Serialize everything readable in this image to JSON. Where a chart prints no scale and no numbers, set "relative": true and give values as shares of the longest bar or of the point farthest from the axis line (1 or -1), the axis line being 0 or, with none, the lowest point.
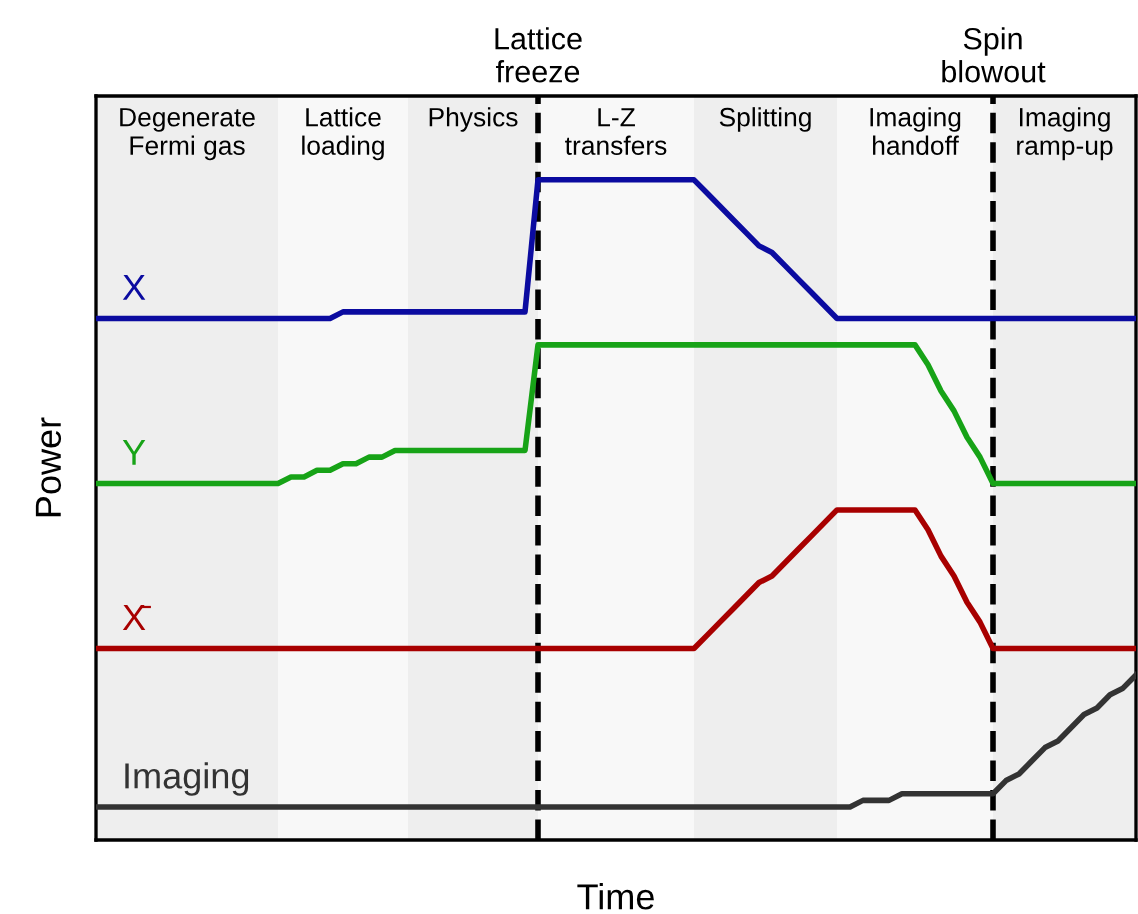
{
  "chart_data": {
    "type": "line",
    "xlabel": "Time",
    "ylabel": "Power",
    "relative": true,
    "line_style": "solid",
    "categories": [
      null,
      null,
      null,
      null,
      null,
      null,
      null,
      null,
      null,
      null,
      null,
      null,
      null,
      null,
      null,
      null,
      null,
      null,
      null,
      null,
      null,
      null,
      null,
      null,
      null,
      null,
      null,
      null,
      null,
      null,
      null,
      null,
      null,
      null,
      null,
      null,
      null,
      null,
      null,
      null,
      null,
      null,
      null,
      null,
      null,
      null,
      null,
      null,
      null,
      null,
      null,
      null,
      null,
      null,
      null,
      null,
      null,
      null,
      null,
      null,
      null,
      null,
      null,
      null,
      null,
      null,
      null,
      null,
      null,
      null,
      null,
      null,
      null,
      null,
      null,
      null,
      null,
      null,
      null,
      null,
      null
    ],
    "series": [
      {
        "name": "X",
        "color": "#0b0ba0",
        "values": [
          0.79,
          0.79,
          0.79,
          0.79,
          0.79,
          0.79,
          0.79,
          0.79,
          0.79,
          0.79,
          0.79,
          0.79,
          0.79,
          0.79,
          0.79,
          0.79,
          0.79,
          0.79,
          0.79,
          0.8,
          0.8,
          0.8,
          0.8,
          0.8,
          0.8,
          0.8,
          0.8,
          0.8,
          0.8,
          0.8,
          0.8,
          0.8,
          0.8,
          0.8,
          1.0,
          1.0,
          1.0,
          1.0,
          1.0,
          1.0,
          1.0,
          1.0,
          1.0,
          1.0,
          1.0,
          1.0,
          1.0,
          0.98,
          0.96,
          0.94,
          0.92,
          0.9,
          0.89,
          0.87,
          0.85,
          0.83,
          0.81,
          0.79,
          0.79,
          0.79,
          0.79,
          0.79,
          0.79,
          0.79,
          0.79,
          0.79,
          0.79,
          0.79,
          0.79,
          0.79,
          0.79,
          0.79,
          0.79,
          0.79,
          0.79,
          0.79,
          0.79,
          0.79,
          0.79,
          0.79,
          0.79
        ]
      },
      {
        "name": "Y",
        "color": "#17a317",
        "values": [
          0.54,
          0.54,
          0.54,
          0.54,
          0.54,
          0.54,
          0.54,
          0.54,
          0.54,
          0.54,
          0.54,
          0.54,
          0.54,
          0.54,
          0.54,
          0.55,
          0.55,
          0.56,
          0.56,
          0.57,
          0.57,
          0.58,
          0.58,
          0.59,
          0.59,
          0.59,
          0.59,
          0.59,
          0.59,
          0.59,
          0.59,
          0.59,
          0.59,
          0.59,
          0.75,
          0.75,
          0.75,
          0.75,
          0.75,
          0.75,
          0.75,
          0.75,
          0.75,
          0.75,
          0.75,
          0.75,
          0.75,
          0.75,
          0.75,
          0.75,
          0.75,
          0.75,
          0.75,
          0.75,
          0.75,
          0.75,
          0.75,
          0.75,
          0.75,
          0.75,
          0.75,
          0.75,
          0.75,
          0.75,
          0.72,
          0.68,
          0.65,
          0.61,
          0.58,
          0.54,
          0.54,
          0.54,
          0.54,
          0.54,
          0.54,
          0.54,
          0.54,
          0.54,
          0.54,
          0.54,
          0.54
        ]
      },
      {
        "name": "X̄",
        "color": "#a80000",
        "values": [
          0.29,
          0.29,
          0.29,
          0.29,
          0.29,
          0.29,
          0.29,
          0.29,
          0.29,
          0.29,
          0.29,
          0.29,
          0.29,
          0.29,
          0.29,
          0.29,
          0.29,
          0.29,
          0.29,
          0.29,
          0.29,
          0.29,
          0.29,
          0.29,
          0.29,
          0.29,
          0.29,
          0.29,
          0.29,
          0.29,
          0.29,
          0.29,
          0.29,
          0.29,
          0.29,
          0.29,
          0.29,
          0.29,
          0.29,
          0.29,
          0.29,
          0.29,
          0.29,
          0.29,
          0.29,
          0.29,
          0.29,
          0.31,
          0.33,
          0.35,
          0.37,
          0.39,
          0.4,
          0.42,
          0.44,
          0.46,
          0.48,
          0.5,
          0.5,
          0.5,
          0.5,
          0.5,
          0.5,
          0.5,
          0.47,
          0.43,
          0.4,
          0.36,
          0.33,
          0.29,
          0.29,
          0.29,
          0.29,
          0.29,
          0.29,
          0.29,
          0.29,
          0.29,
          0.29,
          0.29,
          0.29
        ]
      },
      {
        "name": "Imaging",
        "color": "#333333",
        "values": [
          0.05,
          0.05,
          0.05,
          0.05,
          0.05,
          0.05,
          0.05,
          0.05,
          0.05,
          0.05,
          0.05,
          0.05,
          0.05,
          0.05,
          0.05,
          0.05,
          0.05,
          0.05,
          0.05,
          0.05,
          0.05,
          0.05,
          0.05,
          0.05,
          0.05,
          0.05,
          0.05,
          0.05,
          0.05,
          0.05,
          0.05,
          0.05,
          0.05,
          0.05,
          0.05,
          0.05,
          0.05,
          0.05,
          0.05,
          0.05,
          0.05,
          0.05,
          0.05,
          0.05,
          0.05,
          0.05,
          0.05,
          0.05,
          0.05,
          0.05,
          0.05,
          0.05,
          0.05,
          0.05,
          0.05,
          0.05,
          0.05,
          0.05,
          0.05,
          0.06,
          0.06,
          0.06,
          0.07,
          0.07,
          0.07,
          0.07,
          0.07,
          0.07,
          0.07,
          0.07,
          0.09,
          0.1,
          0.12,
          0.14,
          0.15,
          0.17,
          0.19,
          0.2,
          0.22,
          0.23,
          0.25
        ]
      }
    ],
    "annotations": [
      "Degenerate\nFermi gas",
      "Lattice\nloading",
      "Physics",
      "L-Z\ntransfers",
      "Splitting",
      "Imaging\nhandoff",
      "Imaging\nramp-up",
      "Lattice\nfreeze",
      "Spin\nblowout"
    ]
  }
}
